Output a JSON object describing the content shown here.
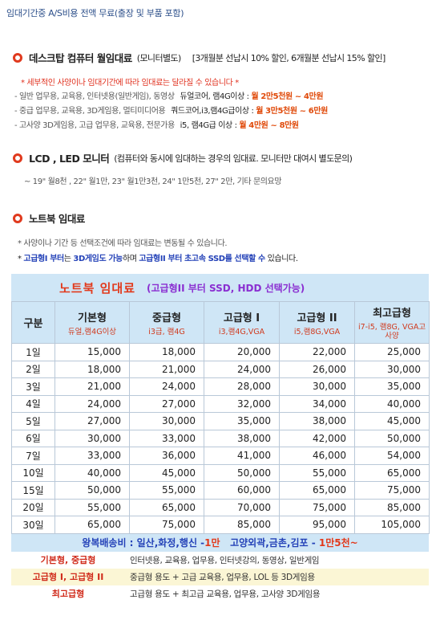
{
  "banner": "임대기간중 A/S비용 전액 무료(출장 및 부품 포함)",
  "desktop": {
    "title": "데스크탑 컴퓨터 월임대료",
    "note": "(모니터별도)",
    "discount": "[3개월분 선납시 10% 할인, 6개월분 선납시 15% 할인]",
    "star_note": "* 세부적인 사양이나 임대기간에 따라 임대료는 달라질 수 있습니다 *",
    "lines": [
      {
        "desc": "- 일반 업무용, 교육용, 인터넷용(일반게임), 동영상",
        "spec": "듀얼코어, 램4G이상 :",
        "price": "월 2만5천원 ~ 4만원"
      },
      {
        "desc": "- 중급 업무용, 교육용, 3D게임용, 멀티미디어용",
        "spec": "쿼드코어,i3,램4G급이상 :",
        "price": "월 3만5천원 ~ 6만원"
      },
      {
        "desc": "- 고사양 3D게임용, 고급 업무용, 교육용, 전문가용",
        "spec": "i5, 램4G급 이상 :",
        "price": "월 4만원   ~   8만원"
      }
    ]
  },
  "lcd": {
    "title": "LCD , LED 모니터",
    "note": "(컴퓨터와 동시에 임대하는 경우의 임대료.  모니터만 대여시 별도문의)",
    "prices": "~ 19\" 월8천 ,  22\" 월1만,  23\" 월1만3천,  24\" 1만5천,  27\" 2만,  기타 문의요망"
  },
  "laptop": {
    "title": "노트북  임대료",
    "note1": "*  사양이나 기간 등 선택조건에 따라 임대료는 변동될 수 있습니다.",
    "note2_star": "*",
    "note2_a": "고급형I 부터",
    "note2_b": "는",
    "note2_c": "3D게임도 가능",
    "note2_d": "하며",
    "note2_e": "고급형II 부터 초고속 SSD를 선택할 수",
    "note2_f": "있습니다."
  },
  "table": {
    "title": "노트북 임대료",
    "subtitle": "(고급형II 부터 SSD, HDD 선택가능)",
    "gubun": "구분",
    "columns": [
      {
        "name": "기본형",
        "spec": "듀얼,램4G이상"
      },
      {
        "name": "중급형",
        "spec": "i3급, 램4G"
      },
      {
        "name": "고급형 I",
        "spec": "i3,램4G,VGA"
      },
      {
        "name": "고급형 II",
        "spec": "i5,램8G,VGA"
      },
      {
        "name": "최고급형",
        "spec": "i7-i5, 램8G, VGA고사양"
      }
    ],
    "rows": [
      {
        "day": "1일",
        "values": [
          "15,000",
          "18,000",
          "20,000",
          "22,000",
          "25,000"
        ]
      },
      {
        "day": "2일",
        "values": [
          "18,000",
          "21,000",
          "24,000",
          "26,000",
          "30,000"
        ]
      },
      {
        "day": "3일",
        "values": [
          "21,000",
          "24,000",
          "28,000",
          "30,000",
          "35,000"
        ]
      },
      {
        "day": "4일",
        "values": [
          "24,000",
          "27,000",
          "32,000",
          "34,000",
          "40,000"
        ]
      },
      {
        "day": "5일",
        "values": [
          "27,000",
          "30,000",
          "35,000",
          "38,000",
          "45,000"
        ]
      },
      {
        "day": "6일",
        "values": [
          "30,000",
          "33,000",
          "38,000",
          "42,000",
          "50,000"
        ]
      },
      {
        "day": "7일",
        "values": [
          "33,000",
          "36,000",
          "41,000",
          "46,000",
          "54,000"
        ]
      },
      {
        "day": "10일",
        "values": [
          "40,000",
          "45,000",
          "50,000",
          "55,000",
          "65,000"
        ]
      },
      {
        "day": "15일",
        "values": [
          "50,000",
          "55,000",
          "60,000",
          "65,000",
          "75,000"
        ]
      },
      {
        "day": "20일",
        "values": [
          "55,000",
          "65,000",
          "70,000",
          "75,000",
          "85,000"
        ]
      },
      {
        "day": "30일",
        "values": [
          "65,000",
          "75,000",
          "85,000",
          "95,000",
          "105,000"
        ]
      }
    ],
    "shipping": {
      "a": "왕복배송비 :  일산,화정,행신 - ",
      "a_fee": "1만",
      "b": "   고양외곽,금촌,김포 - ",
      "b_fee": "1만5천~"
    },
    "uses": [
      {
        "label": "기본형,  중급형",
        "desc": "인터넷용, 교육용, 업무용, 인터넷강의, 동영상, 일반게임"
      },
      {
        "label": "고급형 I,  고급형 II",
        "desc": "중급형 용도 + 고급 교육용, 업무용, LOL 등 3D게임용"
      },
      {
        "label": "최고급형",
        "desc": "고급형 용도 + 최고급 교육용, 업무용, 고사양 3D게임용"
      }
    ]
  },
  "colors": {
    "accent_red": "#e2391b",
    "table_header_blue": "#cfe6f6",
    "link_blue": "#2442b8",
    "purple": "#8a2ed1",
    "band_yellow": "#fbf6d5"
  }
}
